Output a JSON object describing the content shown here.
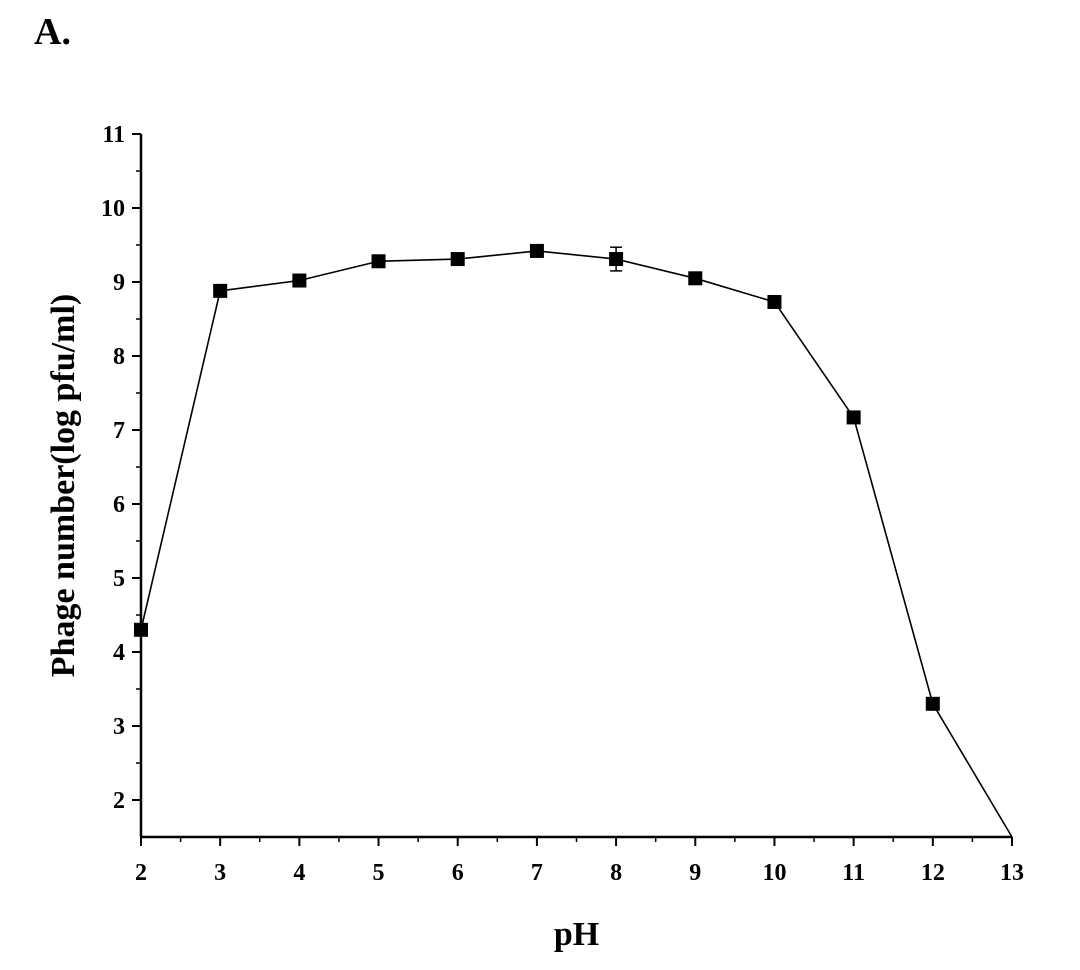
{
  "figure": {
    "panel_label": "A."
  },
  "chart_data": {
    "type": "line",
    "title": "",
    "xlabel": "pH",
    "ylabel": "Phage number(log pfu/ml)",
    "xlim": [
      2,
      13
    ],
    "ylim": [
      1.5,
      11
    ],
    "xticks": [
      2,
      3,
      4,
      5,
      6,
      7,
      8,
      9,
      10,
      11,
      12,
      13
    ],
    "yticks": [
      2,
      3,
      4,
      5,
      6,
      7,
      8,
      9,
      10,
      11
    ],
    "series": [
      {
        "name": "Phage number",
        "marker": "square",
        "color": "#000000",
        "x": [
          2,
          3,
          4,
          5,
          6,
          7,
          8,
          9,
          10,
          11,
          12,
          13
        ],
        "y": [
          4.3,
          8.88,
          9.02,
          9.28,
          9.31,
          9.42,
          9.31,
          9.05,
          8.73,
          7.17,
          3.3,
          1.5
        ],
        "error": [
          0.03,
          0.04,
          0.04,
          0.04,
          0.03,
          0.05,
          0.16,
          0.04,
          0.04,
          0.04,
          0.03,
          0
        ]
      }
    ]
  }
}
